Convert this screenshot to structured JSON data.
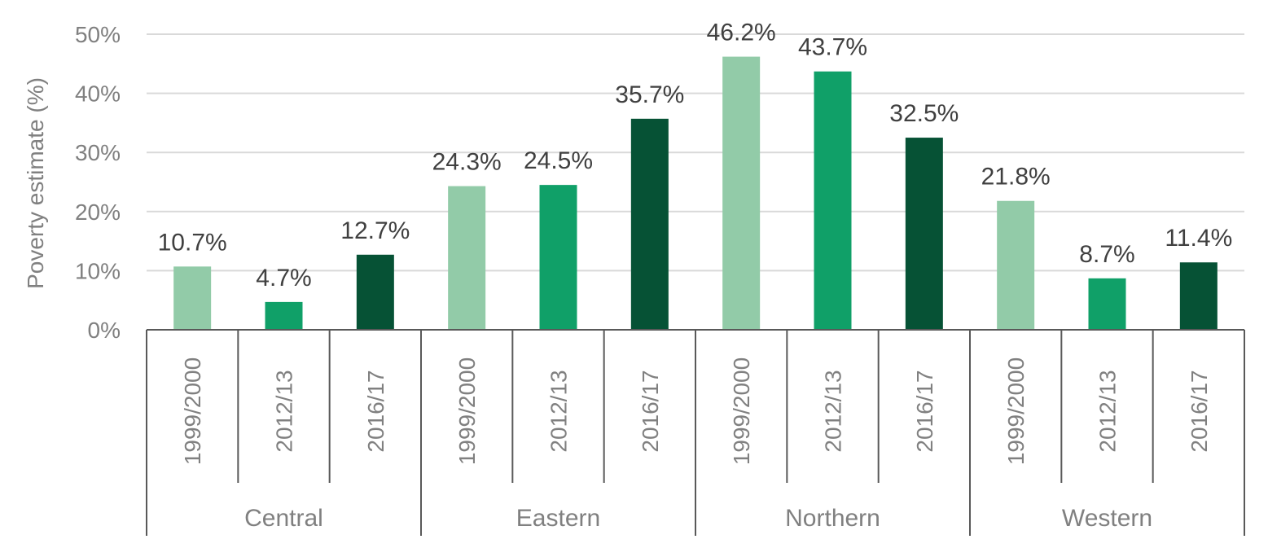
{
  "chart_data": {
    "type": "bar",
    "title": "",
    "xlabel": "",
    "ylabel": "Poverty estimate (%)",
    "ylim": [
      0,
      50
    ],
    "yticks": [
      {
        "value": 0,
        "label": "0%"
      },
      {
        "value": 10,
        "label": "10%"
      },
      {
        "value": 20,
        "label": "20%"
      },
      {
        "value": 30,
        "label": "30%"
      },
      {
        "value": 40,
        "label": "40%"
      },
      {
        "value": 50,
        "label": "50%"
      }
    ],
    "grid": true,
    "groups": [
      {
        "name": "Central",
        "bars": [
          {
            "category": "1999/2000",
            "value": 10.7,
            "label": "10.7%"
          },
          {
            "category": "2012/13",
            "value": 4.7,
            "label": "4.7%"
          },
          {
            "category": "2016/17",
            "value": 12.7,
            "label": "12.7%"
          }
        ]
      },
      {
        "name": "Eastern",
        "bars": [
          {
            "category": "1999/2000",
            "value": 24.3,
            "label": "24.3%"
          },
          {
            "category": "2012/13",
            "value": 24.5,
            "label": "24.5%"
          },
          {
            "category": "2016/17",
            "value": 35.7,
            "label": "35.7%"
          }
        ]
      },
      {
        "name": "Northern",
        "bars": [
          {
            "category": "1999/2000",
            "value": 46.2,
            "label": "46.2%"
          },
          {
            "category": "2012/13",
            "value": 43.7,
            "label": "43.7%"
          },
          {
            "category": "2016/17",
            "value": 32.5,
            "label": "32.5%"
          }
        ]
      },
      {
        "name": "Western",
        "bars": [
          {
            "category": "1999/2000",
            "value": 21.8,
            "label": "21.8%"
          },
          {
            "category": "2012/13",
            "value": 8.7,
            "label": "8.7%"
          },
          {
            "category": "2016/17",
            "value": 11.4,
            "label": "11.4%"
          }
        ]
      }
    ],
    "category_colors": {
      "1999/2000": "#92CBA8",
      "2012/13": "#10A068",
      "2016/17": "#065235"
    },
    "colors": {
      "grid": "#D9D9D9",
      "axis": "#595959"
    }
  }
}
